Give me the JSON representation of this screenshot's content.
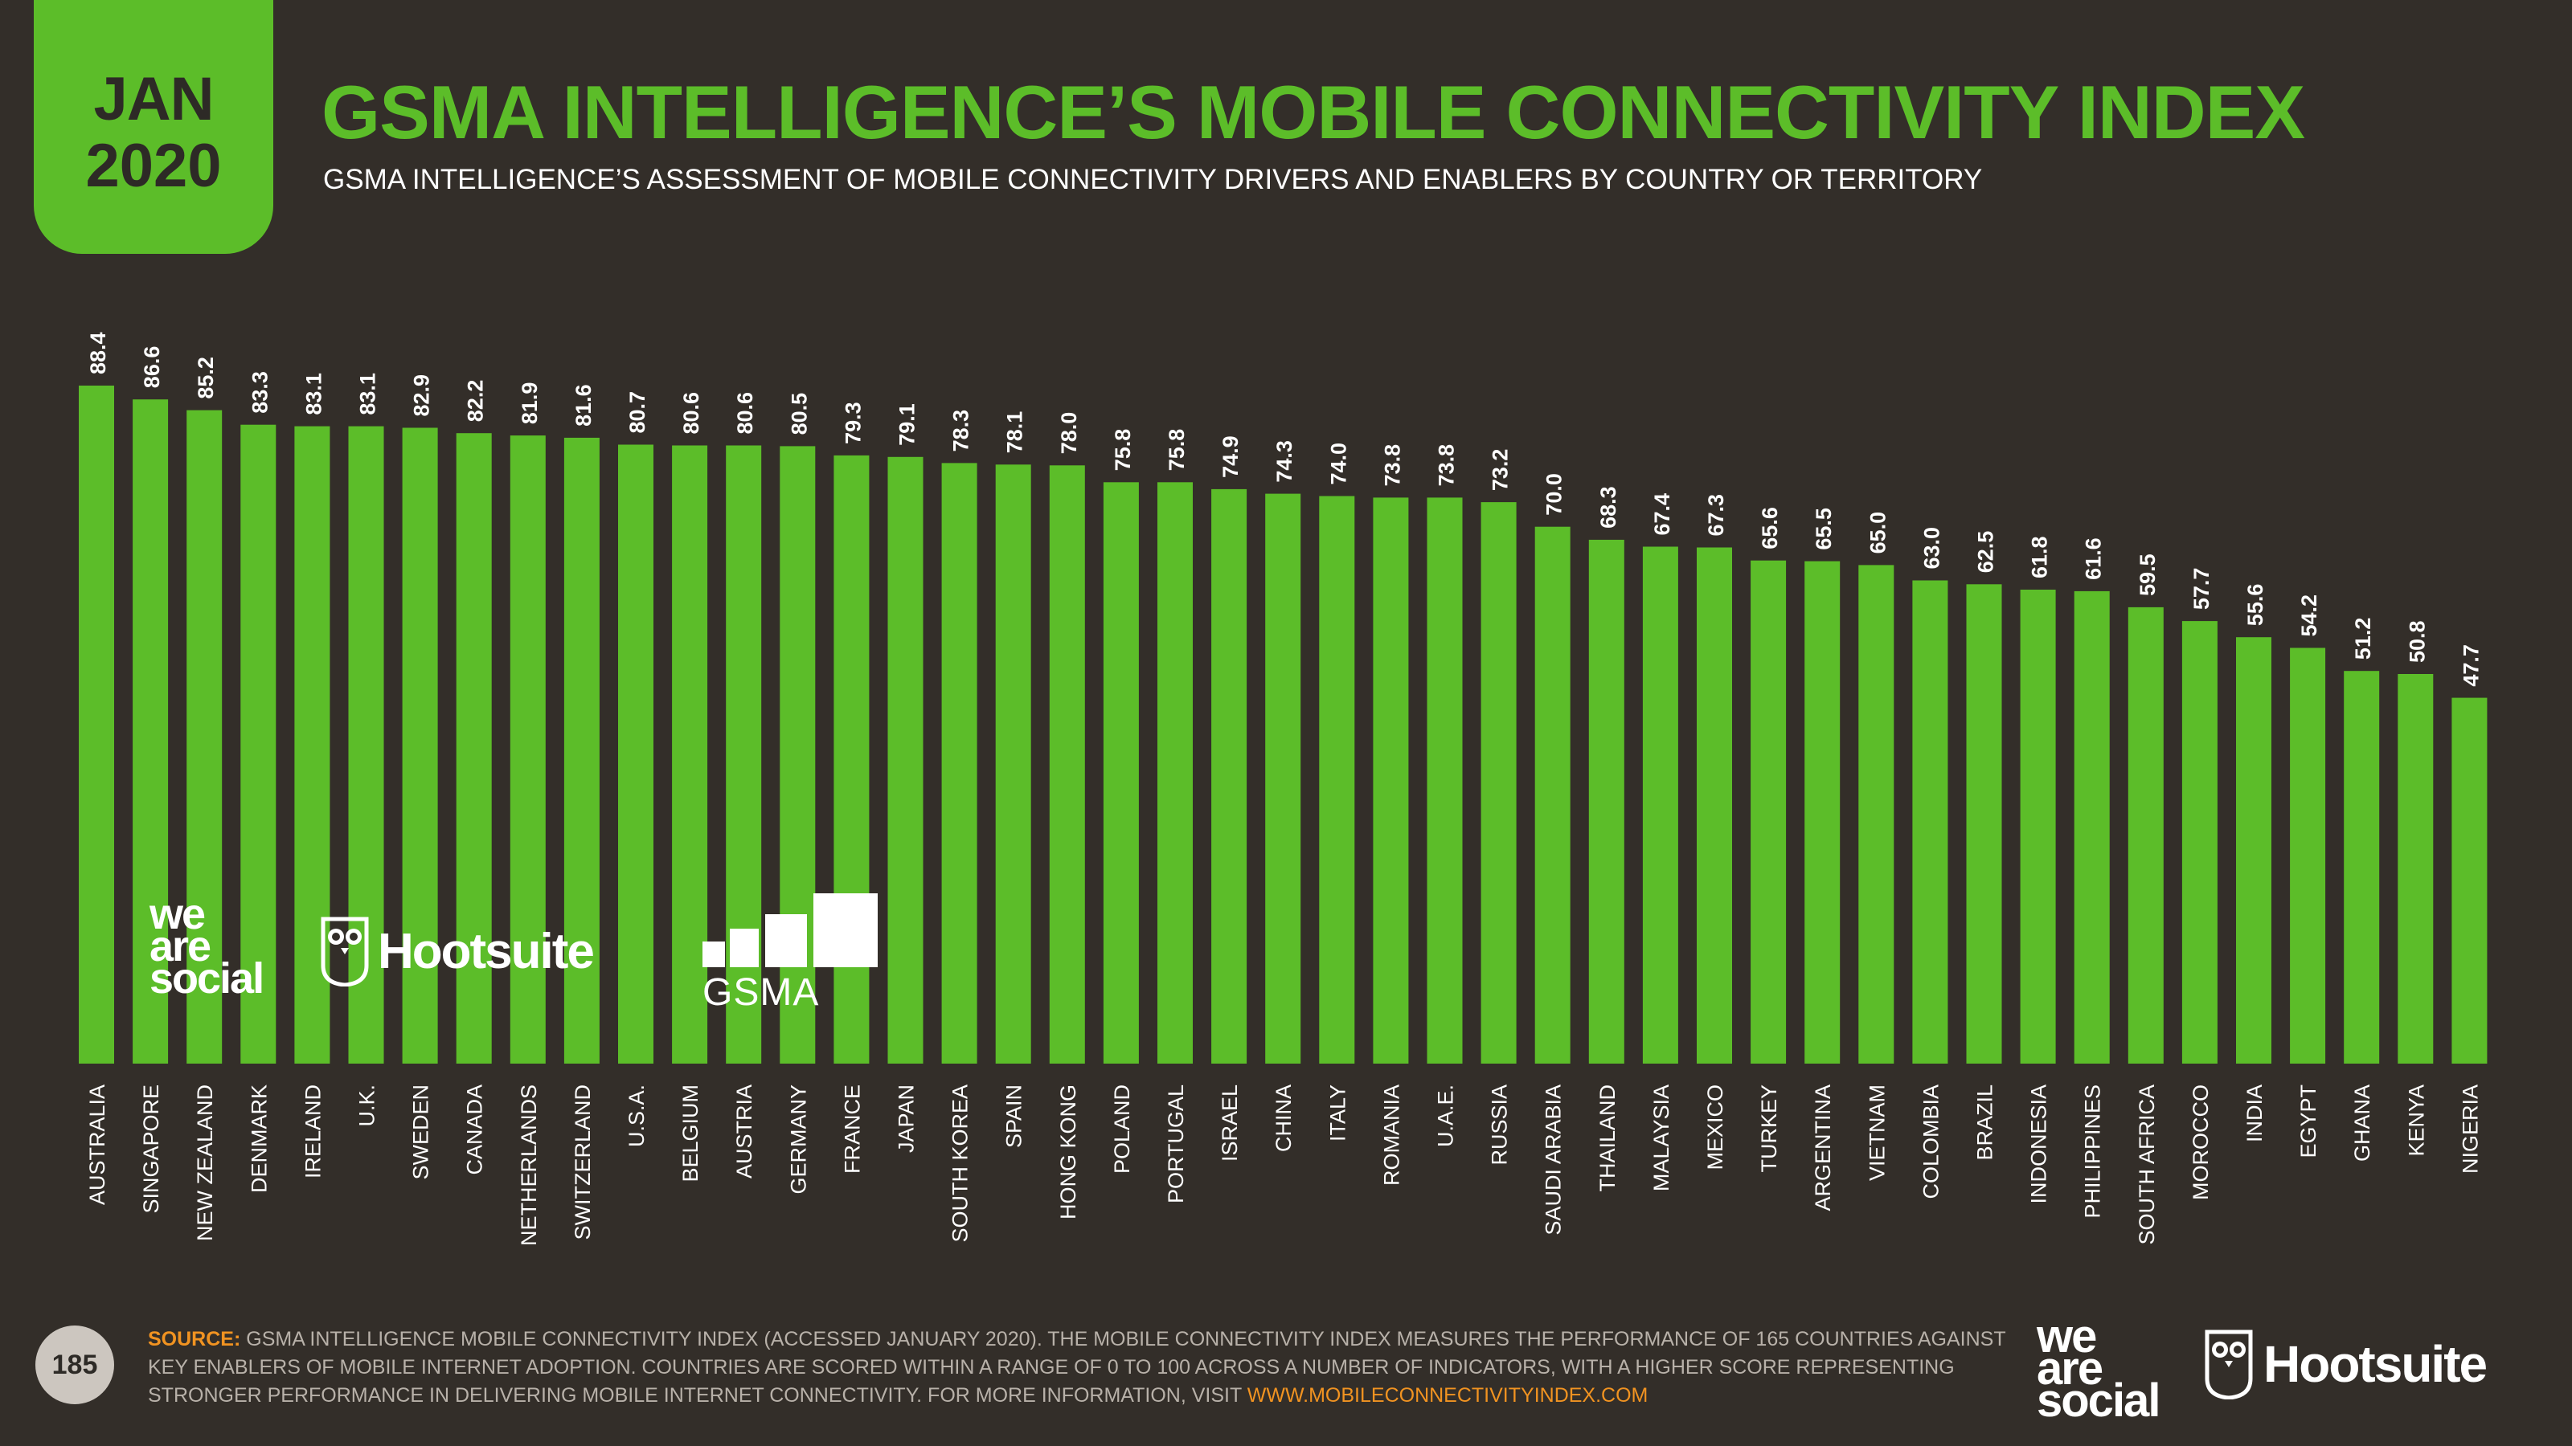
{
  "badge": {
    "month": "JAN",
    "year": "2020"
  },
  "title": "GSMA INTELLIGENCE’S MOBILE CONNECTIVITY INDEX",
  "subtitle": "GSMA INTELLIGENCE’S ASSESSMENT OF MOBILE CONNECTIVITY DRIVERS AND ENABLERS BY COUNTRY OR TERRITORY",
  "colors": {
    "background": "#332e29",
    "accent": "#5cbd29",
    "source_label": "#f19321",
    "text": "#ffffff"
  },
  "chart_data": {
    "type": "bar",
    "title": "",
    "xlabel": "",
    "ylabel": "",
    "ylim": [
      0,
      100
    ],
    "grid": false,
    "categories": [
      "AUSTRALIA",
      "SINGAPORE",
      "NEW ZEALAND",
      "DENMARK",
      "IRELAND",
      "U.K.",
      "SWEDEN",
      "CANADA",
      "NETHERLANDS",
      "SWITZERLAND",
      "U.S.A.",
      "BELGIUM",
      "AUSTRIA",
      "GERMANY",
      "FRANCE",
      "JAPAN",
      "SOUTH KOREA",
      "SPAIN",
      "HONG KONG",
      "POLAND",
      "PORTUGAL",
      "ISRAEL",
      "CHINA",
      "ITALY",
      "ROMANIA",
      "U.A.E.",
      "RUSSIA",
      "SAUDI ARABIA",
      "THAILAND",
      "MALAYSIA",
      "MEXICO",
      "TURKEY",
      "ARGENTINA",
      "VIETNAM",
      "COLOMBIA",
      "BRAZIL",
      "INDONESIA",
      "PHILIPPINES",
      "SOUTH AFRICA",
      "MOROCCO",
      "INDIA",
      "EGYPT",
      "GHANA",
      "KENYA",
      "NIGERIA"
    ],
    "values": [
      88.4,
      86.6,
      85.2,
      83.3,
      83.1,
      83.1,
      82.9,
      82.2,
      81.9,
      81.6,
      80.7,
      80.6,
      80.6,
      80.5,
      79.3,
      79.1,
      78.3,
      78.1,
      78.0,
      75.8,
      75.8,
      74.9,
      74.3,
      74.0,
      73.8,
      73.8,
      73.2,
      70.0,
      68.3,
      67.4,
      67.3,
      65.6,
      65.5,
      65.0,
      63.0,
      62.5,
      61.8,
      61.6,
      59.5,
      57.7,
      55.6,
      54.2,
      51.2,
      50.8,
      47.7
    ],
    "labels": [
      "88.4",
      "86.6",
      "85.2",
      "83.3",
      "83.1",
      "83.1",
      "82.9",
      "82.2",
      "81.9",
      "81.6",
      "80.7",
      "80.6",
      "80.6",
      "80.5",
      "79.3",
      "79.1",
      "78.3",
      "78.1",
      "78.0",
      "75.8",
      "75.8",
      "74.9",
      "74.3",
      "74.0",
      "73.8",
      "73.8",
      "73.2",
      "70.0",
      "68.3",
      "67.4",
      "67.3",
      "65.6",
      "65.5",
      "65.0",
      "63.0",
      "62.5",
      "61.8",
      "61.6",
      "59.5",
      "57.7",
      "55.6",
      "54.2",
      "51.2",
      "50.8",
      "47.7"
    ]
  },
  "logos": {
    "we_are_social": [
      "we",
      "are",
      "social"
    ],
    "hootsuite": "Hootsuite",
    "gsma": "GSMA"
  },
  "footer": {
    "page_number": "185",
    "source_label": "SOURCE:",
    "source_line1": "GSMA INTELLIGENCE MOBILE CONNECTIVITY INDEX (ACCESSED JANUARY 2020). THE MOBILE CONNECTIVITY INDEX MEASURES THE PERFORMANCE OF 165 COUNTRIES AGAINST",
    "source_line2": "KEY ENABLERS OF MOBILE INTERNET ADOPTION. COUNTRIES ARE SCORED WITHIN A RANGE OF 0 TO 100 ACROSS A NUMBER OF INDICATORS, WITH A HIGHER SCORE REPRESENTING",
    "source_line3": "STRONGER PERFORMANCE IN DELIVERING MOBILE INTERNET CONNECTIVITY. FOR MORE INFORMATION, VISIT ",
    "source_url": "WWW.MOBILECONNECTIVITYINDEX.COM"
  }
}
